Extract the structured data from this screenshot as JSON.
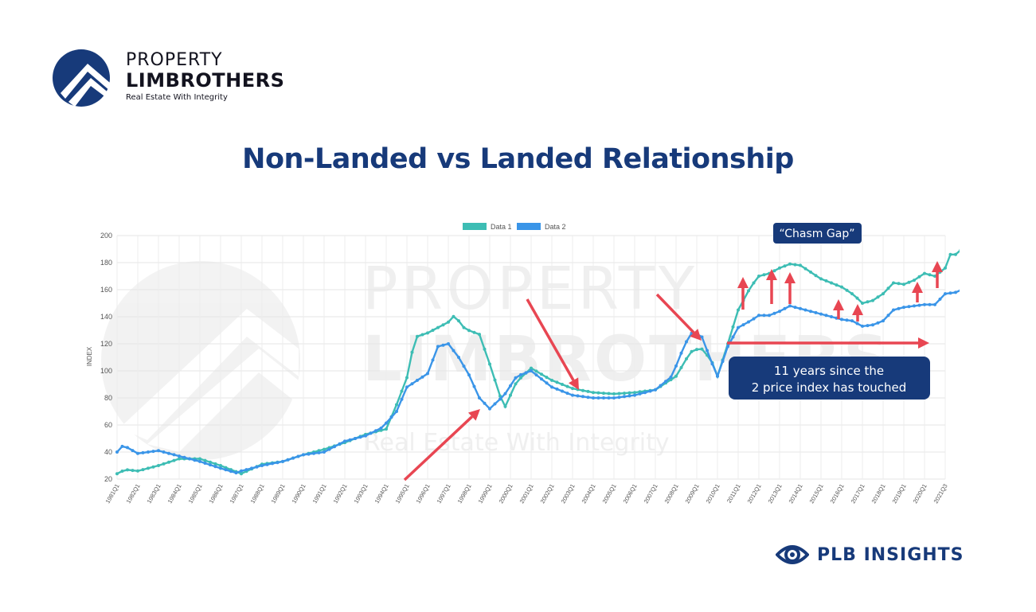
{
  "brand": {
    "line1": "PROPERTY",
    "line2": "LIMBROTHERS",
    "tagline": "Real Estate With Integrity",
    "color": "#173a7a"
  },
  "title": "Non-Landed vs Landed Relationship",
  "footer": {
    "label": "PLB INSIGHTS",
    "icon": "eye-icon"
  },
  "chart_data": {
    "type": "line",
    "ylabel": "INDEX",
    "ylim": [
      20,
      200
    ],
    "yticks": [
      20,
      40,
      60,
      80,
      100,
      120,
      140,
      160,
      180,
      200
    ],
    "grid": true,
    "legend_position": "top-center",
    "watermark": {
      "line1": "PROPERTY",
      "line2": "LIMBROTHERS",
      "line3": "Real Estate With Integrity"
    },
    "xticks": [
      "1981Q1",
      "1982Q1",
      "1983Q1",
      "1984Q1",
      "1985Q1",
      "1986Q1",
      "1987Q1",
      "1988Q1",
      "1989Q1",
      "1990Q1",
      "1991Q1",
      "1992Q1",
      "1993Q1",
      "1994Q1",
      "1995Q1",
      "1996Q1",
      "1997Q1",
      "1998Q1",
      "1999Q1",
      "2000Q1",
      "2001Q1",
      "2002Q1",
      "2003Q1",
      "2004Q1",
      "2005Q1",
      "2006Q1",
      "2007Q1",
      "2008Q1",
      "2009Q1",
      "2010Q1",
      "2011Q1",
      "2012Q1",
      "2013Q1",
      "2014Q1",
      "2015Q1",
      "2016Q1",
      "2017Q1",
      "2018Q1",
      "2019Q1",
      "2020Q1",
      "2021Q3"
    ],
    "x_start_year": 1981,
    "series": [
      {
        "name": "Data 1",
        "color": "#3dbdb4",
        "values": [
          [
            0,
            24
          ],
          [
            0.4,
            27
          ],
          [
            1,
            26
          ],
          [
            2,
            30
          ],
          [
            3,
            35
          ],
          [
            4,
            35
          ],
          [
            5,
            30
          ],
          [
            6,
            24
          ],
          [
            7,
            31
          ],
          [
            8,
            33
          ],
          [
            9,
            38
          ],
          [
            10,
            42
          ],
          [
            11,
            47
          ],
          [
            12,
            53
          ],
          [
            13,
            57
          ],
          [
            13.5,
            75
          ],
          [
            14,
            95
          ],
          [
            14.4,
            125
          ],
          [
            15,
            128
          ],
          [
            16,
            136
          ],
          [
            16.3,
            141
          ],
          [
            16.8,
            131
          ],
          [
            17.5,
            127
          ],
          [
            18,
            105
          ],
          [
            18.7,
            72
          ],
          [
            19.3,
            92
          ],
          [
            20,
            102
          ],
          [
            21,
            93
          ],
          [
            22,
            87
          ],
          [
            23,
            84
          ],
          [
            24,
            83
          ],
          [
            25,
            84
          ],
          [
            26,
            86
          ],
          [
            27,
            96
          ],
          [
            27.7,
            114
          ],
          [
            28.2,
            117
          ],
          [
            28.7,
            108
          ],
          [
            29,
            96
          ],
          [
            29.5,
            120
          ],
          [
            30,
            145
          ],
          [
            30.6,
            162
          ],
          [
            31,
            170
          ],
          [
            31.5,
            172
          ],
          [
            32,
            176
          ],
          [
            32.5,
            179
          ],
          [
            33,
            178
          ],
          [
            34,
            168
          ],
          [
            35,
            162
          ],
          [
            35.6,
            156
          ],
          [
            36,
            150
          ],
          [
            36.5,
            152
          ],
          [
            37,
            157
          ],
          [
            37.5,
            165
          ],
          [
            38,
            164
          ],
          [
            38.5,
            167
          ],
          [
            39,
            172
          ],
          [
            39.5,
            170
          ],
          [
            40,
            176
          ],
          [
            40.2,
            186
          ],
          [
            40.5,
            186
          ],
          [
            40.8,
            190
          ]
        ]
      },
      {
        "name": "Data 2",
        "color": "#3a95e8",
        "values": [
          [
            0,
            40
          ],
          [
            0.3,
            45
          ],
          [
            1,
            39
          ],
          [
            2,
            41
          ],
          [
            3,
            37
          ],
          [
            4,
            33
          ],
          [
            5,
            28
          ],
          [
            5.9,
            24
          ],
          [
            6,
            26
          ],
          [
            7,
            30
          ],
          [
            8,
            33
          ],
          [
            9,
            38
          ],
          [
            10,
            40
          ],
          [
            11,
            48
          ],
          [
            12,
            52
          ],
          [
            12.8,
            58
          ],
          [
            13.5,
            70
          ],
          [
            14,
            88
          ],
          [
            14.5,
            93
          ],
          [
            15,
            98
          ],
          [
            15.5,
            118
          ],
          [
            16,
            120
          ],
          [
            16.5,
            110
          ],
          [
            17,
            97
          ],
          [
            17.5,
            80
          ],
          [
            18,
            72
          ],
          [
            18.7,
            82
          ],
          [
            19.3,
            96
          ],
          [
            20,
            100
          ],
          [
            21,
            88
          ],
          [
            22,
            82
          ],
          [
            23,
            80
          ],
          [
            24,
            80
          ],
          [
            25,
            82
          ],
          [
            26,
            86
          ],
          [
            26.8,
            96
          ],
          [
            27.3,
            115
          ],
          [
            27.7,
            128
          ],
          [
            28.2,
            127
          ],
          [
            28.7,
            107
          ],
          [
            29,
            96
          ],
          [
            29.5,
            118
          ],
          [
            30,
            132
          ],
          [
            30.6,
            137
          ],
          [
            31,
            141
          ],
          [
            31.5,
            141
          ],
          [
            32,
            144
          ],
          [
            32.5,
            148
          ],
          [
            33,
            146
          ],
          [
            34,
            142
          ],
          [
            35,
            138
          ],
          [
            35.5,
            137
          ],
          [
            36,
            133
          ],
          [
            36.5,
            134
          ],
          [
            37,
            137
          ],
          [
            37.5,
            145
          ],
          [
            38,
            147
          ],
          [
            38.5,
            148
          ],
          [
            39,
            149
          ],
          [
            39.5,
            149
          ],
          [
            40,
            157
          ],
          [
            40.5,
            158
          ],
          [
            40.8,
            160
          ]
        ]
      }
    ],
    "annotations": {
      "chasm_label": "“Chasm Gap”",
      "gap_label_line1": "11 years since the",
      "gap_label_line2": "2 price index has touched",
      "arrow_color": "#e84652",
      "label_bg": "#173a7a"
    }
  }
}
